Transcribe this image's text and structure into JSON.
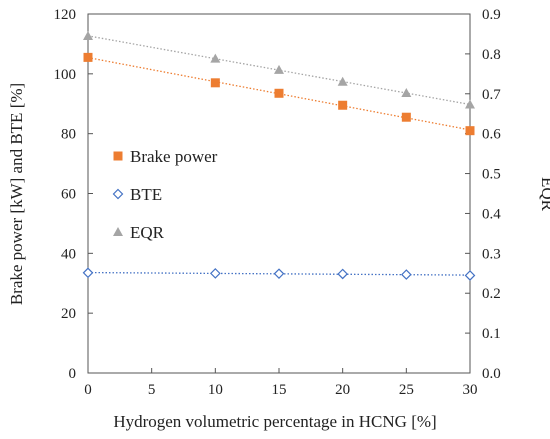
{
  "chart_data": {
    "type": "scatter",
    "title": "",
    "xlabel": "Hydrogen volumetric percentage in HCNG [%]",
    "ylabel": "Brake power [kW] and BTE [%]",
    "y2label": "EQR",
    "xlim": [
      0,
      30
    ],
    "ylim": [
      0,
      120
    ],
    "y2lim": [
      0.0,
      0.9
    ],
    "xticks": [
      "0",
      "5",
      "10",
      "15",
      "20",
      "25",
      "30"
    ],
    "yticks": [
      "0",
      "20",
      "40",
      "60",
      "80",
      "100",
      "120"
    ],
    "y2ticks": [
      "0.0",
      "0.1",
      "0.2",
      "0.3",
      "0.4",
      "0.5",
      "0.6",
      "0.7",
      "0.8",
      "0.9"
    ],
    "grid": false,
    "legend_position": "center-left",
    "x": [
      0,
      10,
      15,
      20,
      25,
      30
    ],
    "series": [
      {
        "name": "Brake power",
        "axis": "left",
        "marker": "square",
        "color": "#ED7D31",
        "trendline": true,
        "values": [
          105.5,
          97,
          93.5,
          89.5,
          85.5,
          81
        ]
      },
      {
        "name": "BTE",
        "axis": "left",
        "marker": "diamond-open",
        "color": "#4472C4",
        "trendline": true,
        "values": [
          33.5,
          33.3,
          33.2,
          33.1,
          32.9,
          32.6
        ]
      },
      {
        "name": "EQR",
        "axis": "right",
        "marker": "triangle",
        "color": "#A5A5A5",
        "trendline": true,
        "values": [
          0.845,
          0.788,
          0.76,
          0.73,
          0.702,
          0.673
        ]
      }
    ]
  }
}
